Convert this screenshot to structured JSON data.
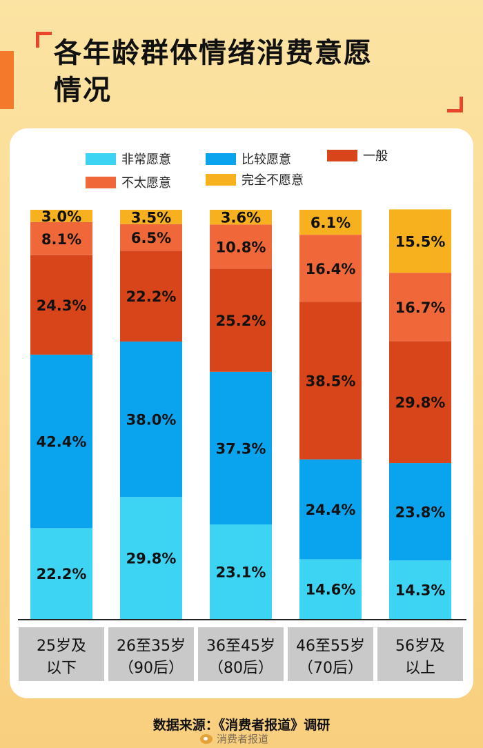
{
  "header": {
    "title_line1": "各年龄群体情绪消费意愿",
    "title_line2": "情况"
  },
  "legend": [
    {
      "label": "非常愿意",
      "color": "#3dd3f2"
    },
    {
      "label": "比较愿意",
      "color": "#0aa4ee"
    },
    {
      "label": "一般",
      "color": "#d8451a"
    },
    {
      "label": "不太愿意",
      "color": "#f0683a"
    },
    {
      "label": "完全不愿意",
      "color": "#f7b11e"
    }
  ],
  "chart_data": {
    "type": "bar",
    "stacked": true,
    "categories": [
      "25岁及以下",
      "26至35岁（90后）",
      "36至45岁（80后）",
      "46至55岁（70后）",
      "56岁及以上"
    ],
    "category_label_lines": [
      [
        "25岁及",
        "以下"
      ],
      [
        "26至35岁",
        "（90后）"
      ],
      [
        "36至45岁",
        "（80后）"
      ],
      [
        "46至55岁",
        "（70后）"
      ],
      [
        "56岁及",
        "以上"
      ]
    ],
    "unit": "%",
    "ylim": [
      0,
      100
    ],
    "series": [
      {
        "name": "非常愿意",
        "color": "#3dd3f2",
        "values": [
          22.2,
          29.8,
          23.1,
          14.6,
          14.3
        ]
      },
      {
        "name": "比较愿意",
        "color": "#0aa4ee",
        "values": [
          42.4,
          38.0,
          37.3,
          24.4,
          23.8
        ]
      },
      {
        "name": "一般",
        "color": "#d8451a",
        "values": [
          24.3,
          22.2,
          25.2,
          38.5,
          29.8
        ]
      },
      {
        "name": "不太愿意",
        "color": "#f0683a",
        "values": [
          8.1,
          6.5,
          10.8,
          16.4,
          16.7
        ]
      },
      {
        "name": "完全不愿意",
        "color": "#f7b11e",
        "values": [
          3.0,
          3.5,
          3.6,
          6.1,
          15.5
        ]
      }
    ],
    "data_labels": [
      [
        "22.2%",
        "42.4%",
        "24.3%",
        "8.1%",
        "3.0%"
      ],
      [
        "29.8%",
        "38.0%",
        "22.2%",
        "6.5%",
        "3.5%"
      ],
      [
        "23.1%",
        "37.3%",
        "25.2%",
        "10.8%",
        "3.6%"
      ],
      [
        "14.6%",
        "24.4%",
        "38.5%",
        "16.4%",
        "6.1%"
      ],
      [
        "14.3%",
        "23.8%",
        "29.8%",
        "16.7%",
        "15.5%"
      ]
    ],
    "legend_position": "top",
    "grid": false
  },
  "footer": {
    "source": "数据来源：《消费者报道》调研",
    "account": "消费者报道"
  }
}
